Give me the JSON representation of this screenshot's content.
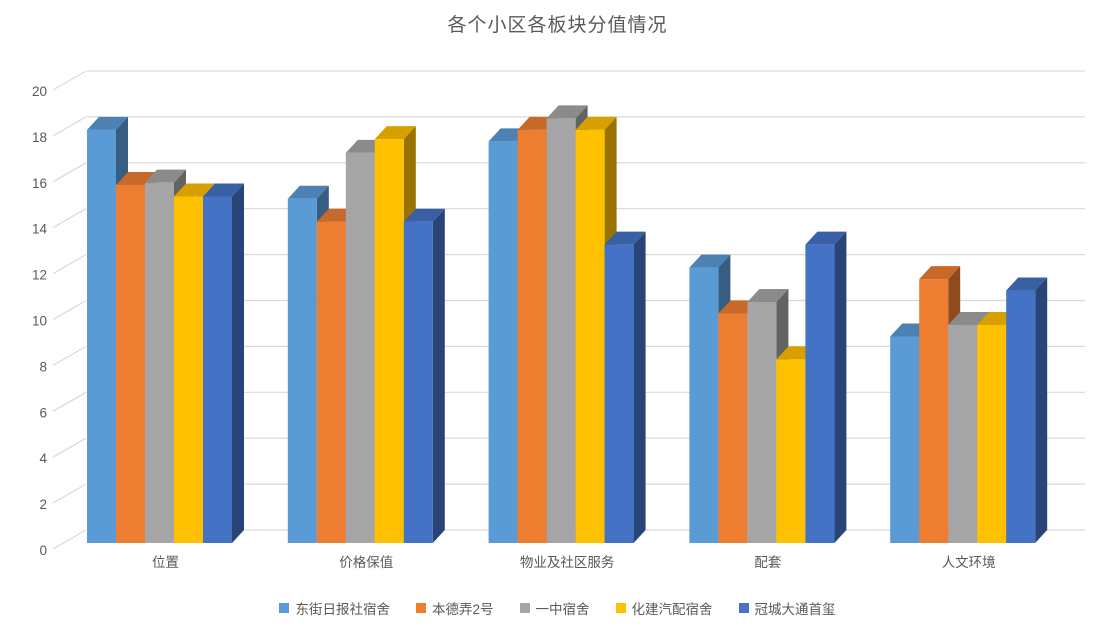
{
  "chart_data": {
    "type": "bar",
    "variant": "3d-clustered-column",
    "title": "各个小区各板块分值情况",
    "categories": [
      "位置",
      "价格保值",
      "物业及社区服务",
      "配套",
      "人文环境"
    ],
    "series": [
      {
        "name": "东街日报社宿舍",
        "color": "#5B9BD5",
        "values": [
          18,
          15,
          17.5,
          12,
          9
        ]
      },
      {
        "name": "本德弄2号",
        "color": "#ED7D31",
        "values": [
          15.6,
          14,
          18,
          10,
          11.5
        ]
      },
      {
        "name": "一中宿舍",
        "color": "#A5A5A5",
        "values": [
          15.7,
          17,
          18.5,
          10.5,
          9.5
        ]
      },
      {
        "name": "化建汽配宿舍",
        "color": "#FFC000",
        "values": [
          15.1,
          17.6,
          18,
          8,
          9.5
        ]
      },
      {
        "name": "冠城大通首玺",
        "color": "#4472C4",
        "values": [
          15.1,
          14,
          13,
          13,
          11
        ]
      }
    ],
    "y_axis": {
      "min": 0,
      "max": 20,
      "step": 2,
      "ticks": [
        0,
        2,
        4,
        6,
        8,
        10,
        12,
        14,
        16,
        18,
        20
      ]
    },
    "grid": true,
    "legend_position": "bottom",
    "colors": {
      "grid": "#D9D9D9",
      "text": "#595959",
      "background": "#FFFFFF"
    }
  }
}
